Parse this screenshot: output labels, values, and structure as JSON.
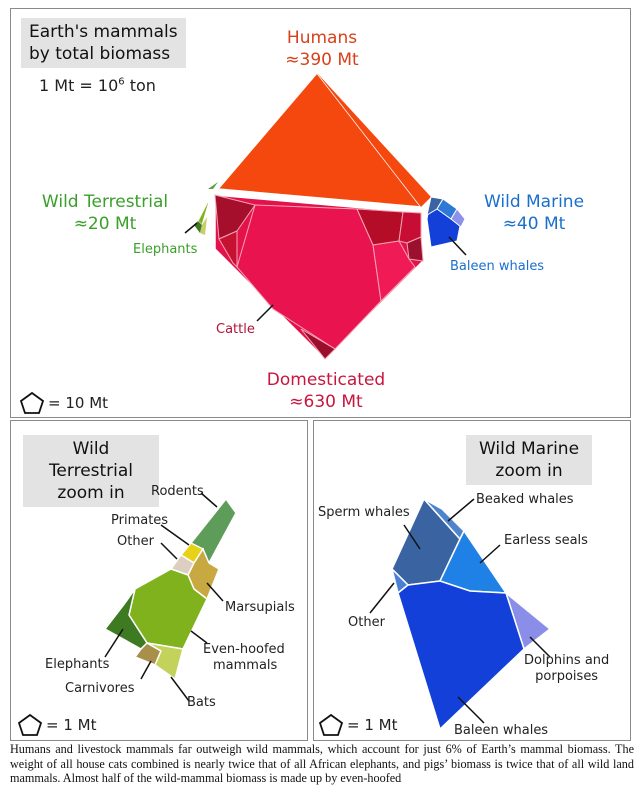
{
  "main": {
    "title_line1": "Earth's mammals",
    "title_line2": "by total biomass",
    "unit_prefix": "1 Mt = 10",
    "unit_exp": "6",
    "unit_suffix": " ton",
    "humans_label": "Humans",
    "humans_value": "≈390 Mt",
    "wild_terrestrial_label": "Wild Terrestrial",
    "wild_terrestrial_value": "≈20 Mt",
    "wild_marine_label": "Wild Marine",
    "wild_marine_value": "≈40 Mt",
    "domesticated_label": "Domesticated",
    "domesticated_value": "≈630 Mt",
    "elephants_label": "Elephants",
    "baleen_label": "Baleen whales",
    "cattle_label": "Cattle",
    "legend": "= 10 Mt"
  },
  "terrestrial": {
    "title_line1": "Wild Terrestrial",
    "title_line2": "zoom in",
    "rodents": "Rodents",
    "primates": "Primates",
    "other": "Other",
    "marsupials": "Marsupials",
    "even_hoofed_line1": "Even-hoofed",
    "even_hoofed_line2": "mammals",
    "elephants": "Elephants",
    "carnivores": "Carnivores",
    "bats": "Bats",
    "legend": "= 1 Mt"
  },
  "marine": {
    "title_line1": "Wild Marine",
    "title_line2": "zoom in",
    "sperm_whales": "Sperm whales",
    "beaked_whales": "Beaked whales",
    "earless_seals": "Earless seals",
    "other": "Other",
    "dolphins_line1": "Dolphins and",
    "dolphins_line2": "porpoises",
    "baleen_whales": "Baleen whales",
    "legend": "= 1 Mt"
  },
  "caption": "Humans and livestock mammals far outweigh wild mammals, which account for just 6% of Earth’s mammal biomass. The weight of all house cats combined is nearly twice that of all African elephants, and pigs’ biomass is twice that of all wild land mammals. Almost half of the wild-mammal biomass is made up by even-hoofed",
  "colors": {
    "humans": "#f5480f",
    "domesticated": "#e3124a",
    "terrestrial": "#7fb21c",
    "marine": "#1240d8"
  }
}
